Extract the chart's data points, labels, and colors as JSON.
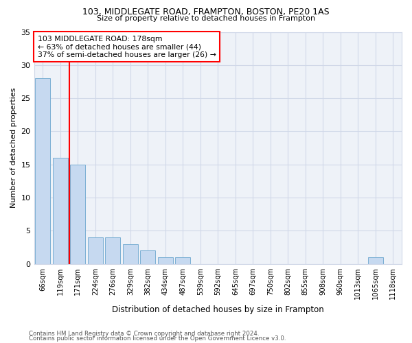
{
  "title1": "103, MIDDLEGATE ROAD, FRAMPTON, BOSTON, PE20 1AS",
  "title2": "Size of property relative to detached houses in Frampton",
  "xlabel": "Distribution of detached houses by size in Frampton",
  "ylabel": "Number of detached properties",
  "categories": [
    "66sqm",
    "119sqm",
    "171sqm",
    "224sqm",
    "276sqm",
    "329sqm",
    "382sqm",
    "434sqm",
    "487sqm",
    "539sqm",
    "592sqm",
    "645sqm",
    "697sqm",
    "750sqm",
    "802sqm",
    "855sqm",
    "908sqm",
    "960sqm",
    "1013sqm",
    "1065sqm",
    "1118sqm"
  ],
  "values": [
    28,
    16,
    15,
    4,
    4,
    3,
    2,
    1,
    1,
    0,
    0,
    0,
    0,
    0,
    0,
    0,
    0,
    0,
    0,
    1,
    0
  ],
  "bar_color": "#c6d9f0",
  "bar_edge_color": "#7bafd4",
  "property_line_x": 1.5,
  "annotation_text": "103 MIDDLEGATE ROAD: 178sqm\n← 63% of detached houses are smaller (44)\n37% of semi-detached houses are larger (26) →",
  "annotation_box_color": "white",
  "annotation_box_edge_color": "red",
  "vline_color": "red",
  "grid_color": "#d0d8e8",
  "bg_color": "#eef2f8",
  "ylim": [
    0,
    35
  ],
  "yticks": [
    0,
    5,
    10,
    15,
    20,
    25,
    30,
    35
  ],
  "footer1": "Contains HM Land Registry data © Crown copyright and database right 2024.",
  "footer2": "Contains public sector information licensed under the Open Government Licence v3.0."
}
